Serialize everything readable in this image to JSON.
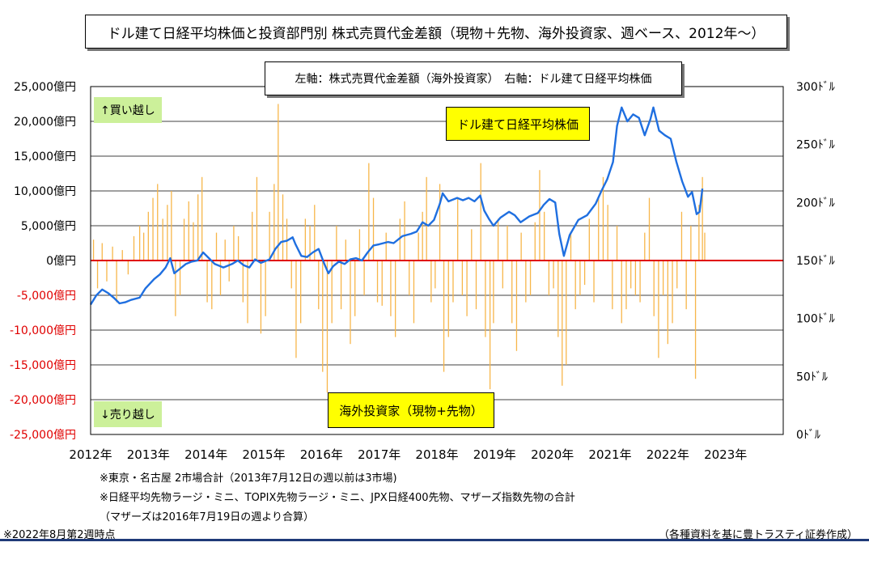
{
  "title": "ドル建て日経平均株価と投資部門別  株式売買代金差額（現物＋先物、海外投資家、週ベース、2012年～）",
  "axis_note": "左軸：株式売買代金差額（海外投資家）　右軸：ドル建て日経平均株価",
  "labels": {
    "buy": "↑買い越し",
    "sell": "↓売り越し",
    "price_series": "ドル建て日経平均株価",
    "flow_series": "海外投資家（現物+先物）"
  },
  "notes": {
    "line1": "※東京・名古屋 2市場合計（2013年7月12日の週以前は3市場)",
    "line2": "※日経平均先物ラージ・ミニ、TOPIX先物ラージ・ミニ、JPX日経400先物、マザーズ指数先物の合計",
    "line3": "（マザーズは2016年7月19日の週より合算）",
    "as_of": "※2022年8月第2週時点",
    "source": "（各種資料を基に豊トラスティ証券作成）"
  },
  "colors": {
    "price_line": "#1f6fe0",
    "flow_bar": "#f7b64a",
    "zero_line": "#e00000",
    "grid": "#000000",
    "green_tag": "#ccf09a",
    "yellow_tag": "#ffff00"
  },
  "chart_data": {
    "type": "bar+line",
    "left_axis": {
      "ticks": [
        "25,000億円",
        "20,000億円",
        "15,000億円",
        "10,000億円",
        "5,000億円",
        "0億円",
        "-5,000億円",
        "-10,000億円",
        "-15,000億円",
        "-20,000億円",
        "-25,000億円"
      ],
      "tick_values": [
        25000,
        20000,
        15000,
        10000,
        5000,
        0,
        -5000,
        -10000,
        -15000,
        -20000,
        -25000
      ],
      "negative_color": "#e00000",
      "range": [
        -25000,
        25000
      ]
    },
    "right_axis": {
      "ticks": [
        "300ﾄﾞﾙ",
        "250ﾄﾞﾙ",
        "200ﾄﾞﾙ",
        "150ﾄﾞﾙ",
        "100ﾄﾞﾙ",
        "50ﾄﾞﾙ",
        "0ﾄﾞﾙ"
      ],
      "tick_values": [
        300,
        250,
        200,
        150,
        100,
        50,
        0
      ],
      "range": [
        0,
        300
      ]
    },
    "x_axis": {
      "ticks": [
        "2012年",
        "2013年",
        "2014年",
        "2015年",
        "2016年",
        "2017年",
        "2018年",
        "2019年",
        "2020年",
        "2021年",
        "2022年",
        "2023年"
      ],
      "tick_values": [
        2012,
        2013,
        2014,
        2015,
        2016,
        2017,
        2018,
        2019,
        2020,
        2021,
        2022,
        2023
      ],
      "range": [
        2012,
        2024
      ]
    },
    "series": [
      {
        "name": "ドル建て日経平均株価",
        "axis": "right",
        "type": "line",
        "points": [
          [
            2012.0,
            112
          ],
          [
            2012.1,
            120
          ],
          [
            2012.2,
            125
          ],
          [
            2012.3,
            122
          ],
          [
            2012.4,
            118
          ],
          [
            2012.5,
            113
          ],
          [
            2012.6,
            114
          ],
          [
            2012.7,
            116
          ],
          [
            2012.85,
            118
          ],
          [
            2012.95,
            126
          ],
          [
            2013.1,
            134
          ],
          [
            2013.2,
            138
          ],
          [
            2013.3,
            144
          ],
          [
            2013.38,
            152
          ],
          [
            2013.45,
            139
          ],
          [
            2013.55,
            143
          ],
          [
            2013.65,
            147
          ],
          [
            2013.75,
            149
          ],
          [
            2013.85,
            150
          ],
          [
            2013.95,
            157
          ],
          [
            2014.05,
            152
          ],
          [
            2014.15,
            147
          ],
          [
            2014.3,
            144
          ],
          [
            2014.45,
            147
          ],
          [
            2014.55,
            150
          ],
          [
            2014.65,
            146
          ],
          [
            2014.75,
            144
          ],
          [
            2014.85,
            151
          ],
          [
            2014.95,
            148
          ],
          [
            2015.1,
            151
          ],
          [
            2015.2,
            160
          ],
          [
            2015.3,
            166
          ],
          [
            2015.4,
            167
          ],
          [
            2015.5,
            170
          ],
          [
            2015.55,
            164
          ],
          [
            2015.65,
            154
          ],
          [
            2015.75,
            153
          ],
          [
            2015.85,
            157
          ],
          [
            2015.95,
            160
          ],
          [
            2016.05,
            147
          ],
          [
            2016.12,
            139
          ],
          [
            2016.2,
            145
          ],
          [
            2016.3,
            149
          ],
          [
            2016.4,
            147
          ],
          [
            2016.5,
            151
          ],
          [
            2016.6,
            152
          ],
          [
            2016.7,
            150
          ],
          [
            2016.8,
            157
          ],
          [
            2016.9,
            163
          ],
          [
            2017.0,
            164
          ],
          [
            2017.15,
            166
          ],
          [
            2017.25,
            165
          ],
          [
            2017.4,
            171
          ],
          [
            2017.55,
            173
          ],
          [
            2017.65,
            175
          ],
          [
            2017.75,
            183
          ],
          [
            2017.85,
            180
          ],
          [
            2017.95,
            185
          ],
          [
            2018.05,
            199
          ],
          [
            2018.1,
            208
          ],
          [
            2018.2,
            201
          ],
          [
            2018.35,
            204
          ],
          [
            2018.45,
            202
          ],
          [
            2018.55,
            204
          ],
          [
            2018.65,
            201
          ],
          [
            2018.75,
            206
          ],
          [
            2018.82,
            193
          ],
          [
            2018.9,
            186
          ],
          [
            2018.98,
            180
          ],
          [
            2019.1,
            187
          ],
          [
            2019.25,
            192
          ],
          [
            2019.35,
            189
          ],
          [
            2019.45,
            183
          ],
          [
            2019.6,
            188
          ],
          [
            2019.75,
            191
          ],
          [
            2019.85,
            198
          ],
          [
            2019.95,
            203
          ],
          [
            2020.05,
            200
          ],
          [
            2020.12,
            173
          ],
          [
            2020.2,
            154
          ],
          [
            2020.3,
            172
          ],
          [
            2020.45,
            185
          ],
          [
            2020.6,
            189
          ],
          [
            2020.75,
            199
          ],
          [
            2020.85,
            210
          ],
          [
            2020.95,
            220
          ],
          [
            2021.05,
            235
          ],
          [
            2021.12,
            266
          ],
          [
            2021.2,
            282
          ],
          [
            2021.3,
            270
          ],
          [
            2021.4,
            276
          ],
          [
            2021.5,
            273
          ],
          [
            2021.6,
            258
          ],
          [
            2021.7,
            272
          ],
          [
            2021.75,
            282
          ],
          [
            2021.85,
            262
          ],
          [
            2021.95,
            258
          ],
          [
            2022.05,
            255
          ],
          [
            2022.15,
            235
          ],
          [
            2022.25,
            218
          ],
          [
            2022.35,
            205
          ],
          [
            2022.42,
            209
          ],
          [
            2022.5,
            190
          ],
          [
            2022.55,
            192
          ],
          [
            2022.6,
            212
          ]
        ]
      },
      {
        "name": "海外投資家（現物+先物）",
        "axis": "left",
        "type": "bar",
        "points": [
          [
            2012.05,
            3000
          ],
          [
            2012.12,
            -4000
          ],
          [
            2012.2,
            2500
          ],
          [
            2012.28,
            -3000
          ],
          [
            2012.38,
            2000
          ],
          [
            2012.45,
            -6000
          ],
          [
            2012.55,
            1500
          ],
          [
            2012.65,
            -2000
          ],
          [
            2012.75,
            3500
          ],
          [
            2012.85,
            5000
          ],
          [
            2012.92,
            4000
          ],
          [
            2013.0,
            7000
          ],
          [
            2013.08,
            9000
          ],
          [
            2013.16,
            11000
          ],
          [
            2013.25,
            6000
          ],
          [
            2013.33,
            8000
          ],
          [
            2013.4,
            10000
          ],
          [
            2013.47,
            -8000
          ],
          [
            2013.55,
            -5000
          ],
          [
            2013.62,
            6000
          ],
          [
            2013.7,
            8500
          ],
          [
            2013.78,
            5500
          ],
          [
            2013.86,
            9500
          ],
          [
            2013.93,
            12000
          ],
          [
            2014.02,
            -6000
          ],
          [
            2014.1,
            -7000
          ],
          [
            2014.18,
            4000
          ],
          [
            2014.25,
            -5000
          ],
          [
            2014.33,
            3000
          ],
          [
            2014.4,
            -3000
          ],
          [
            2014.48,
            5000
          ],
          [
            2014.56,
            3500
          ],
          [
            2014.64,
            -6000
          ],
          [
            2014.72,
            -9000
          ],
          [
            2014.8,
            7000
          ],
          [
            2014.88,
            12000
          ],
          [
            2014.95,
            -10500
          ],
          [
            2015.03,
            -8000
          ],
          [
            2015.1,
            7000
          ],
          [
            2015.18,
            11000
          ],
          [
            2015.25,
            22500
          ],
          [
            2015.33,
            9500
          ],
          [
            2015.4,
            6000
          ],
          [
            2015.48,
            -4000
          ],
          [
            2015.56,
            -14000
          ],
          [
            2015.64,
            -9000
          ],
          [
            2015.72,
            6000
          ],
          [
            2015.8,
            5000
          ],
          [
            2015.88,
            8000
          ],
          [
            2015.95,
            -7000
          ],
          [
            2016.02,
            -16000
          ],
          [
            2016.1,
            -19000
          ],
          [
            2016.18,
            -9000
          ],
          [
            2016.26,
            5000
          ],
          [
            2016.34,
            -7000
          ],
          [
            2016.42,
            3000
          ],
          [
            2016.5,
            -12000
          ],
          [
            2016.58,
            -8000
          ],
          [
            2016.66,
            4500
          ],
          [
            2016.74,
            -5000
          ],
          [
            2016.82,
            14000
          ],
          [
            2016.9,
            9000
          ],
          [
            2016.97,
            -6000
          ],
          [
            2017.05,
            -6500
          ],
          [
            2017.12,
            4000
          ],
          [
            2017.2,
            -8000
          ],
          [
            2017.28,
            -11000
          ],
          [
            2017.36,
            6000
          ],
          [
            2017.44,
            8500
          ],
          [
            2017.52,
            -5000
          ],
          [
            2017.6,
            -9000
          ],
          [
            2017.68,
            4000
          ],
          [
            2017.75,
            7000
          ],
          [
            2017.82,
            12000
          ],
          [
            2017.9,
            -6000
          ],
          [
            2017.97,
            -4000
          ],
          [
            2018.05,
            11000
          ],
          [
            2018.12,
            -16000
          ],
          [
            2018.2,
            -11000
          ],
          [
            2018.28,
            -6000
          ],
          [
            2018.36,
            9000
          ],
          [
            2018.44,
            -5000
          ],
          [
            2018.52,
            -8000
          ],
          [
            2018.6,
            4500
          ],
          [
            2018.68,
            -7000
          ],
          [
            2018.76,
            14000
          ],
          [
            2018.84,
            -11000
          ],
          [
            2018.92,
            -18500
          ],
          [
            2018.98,
            -9000
          ],
          [
            2019.06,
            6000
          ],
          [
            2019.14,
            -4000
          ],
          [
            2019.22,
            5000
          ],
          [
            2019.3,
            -9000
          ],
          [
            2019.38,
            -13000
          ],
          [
            2019.46,
            4000
          ],
          [
            2019.54,
            -6000
          ],
          [
            2019.62,
            -5000
          ],
          [
            2019.7,
            5500
          ],
          [
            2019.78,
            13000
          ],
          [
            2019.86,
            7000
          ],
          [
            2019.94,
            -5000
          ],
          [
            2020.02,
            -4000
          ],
          [
            2020.1,
            -11000
          ],
          [
            2020.17,
            -18000
          ],
          [
            2020.24,
            -15000
          ],
          [
            2020.32,
            4000
          ],
          [
            2020.4,
            -7000
          ],
          [
            2020.48,
            -5000
          ],
          [
            2020.56,
            -3500
          ],
          [
            2020.64,
            6000
          ],
          [
            2020.72,
            -6000
          ],
          [
            2020.8,
            9000
          ],
          [
            2020.88,
            12000
          ],
          [
            2020.96,
            8000
          ],
          [
            2021.04,
            -7000
          ],
          [
            2021.12,
            5000
          ],
          [
            2021.2,
            -9000
          ],
          [
            2021.28,
            -7000
          ],
          [
            2021.36,
            -4000
          ],
          [
            2021.44,
            -5000
          ],
          [
            2021.52,
            -6000
          ],
          [
            2021.6,
            4000
          ],
          [
            2021.68,
            9000
          ],
          [
            2021.76,
            -8000
          ],
          [
            2021.84,
            -14000
          ],
          [
            2021.92,
            -5000
          ],
          [
            2022.0,
            -12000
          ],
          [
            2022.08,
            -9000
          ],
          [
            2022.16,
            -4000
          ],
          [
            2022.24,
            7000
          ],
          [
            2022.32,
            -7000
          ],
          [
            2022.4,
            5000
          ],
          [
            2022.48,
            -17000
          ],
          [
            2022.54,
            8000
          ],
          [
            2022.6,
            12000
          ],
          [
            2022.64,
            4000
          ]
        ]
      }
    ],
    "grid": true,
    "legend": "inline labels"
  }
}
